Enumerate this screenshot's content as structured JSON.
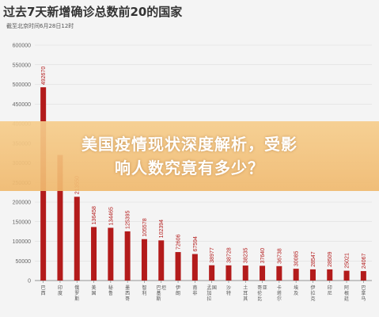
{
  "chart_data": {
    "type": "bar",
    "title": "过去7天新增确诊总数前20的国家",
    "subtitle": "截至北京时间6月28日12时",
    "categories": [
      "巴西",
      "印度",
      "俄罗斯",
      "美国",
      "秘鲁",
      "墨西哥",
      "智利",
      "巴基斯坦",
      "伊朗",
      "南非",
      "孟加拉国",
      "沙特",
      "土耳其",
      "哥伦比亚",
      "卡塔尔",
      "埃及",
      "伊拉克",
      "印尼",
      "阿根廷",
      "巴拿马"
    ],
    "value_labels": [
      "492670",
      "",
      "213550",
      "136458",
      "134465",
      "125395",
      "105578",
      "102394",
      "72606",
      "67594",
      "38977",
      "38728",
      "38235",
      "37640",
      "36738",
      "30085",
      "28547",
      "28509",
      "25021",
      "24067"
    ],
    "values": [
      492670,
      320000,
      213550,
      136458,
      134465,
      125395,
      105578,
      102394,
      72606,
      67594,
      38977,
      38728,
      38235,
      37640,
      36738,
      30085,
      28547,
      28509,
      25021,
      24067
    ],
    "yticks": [
      "600000",
      "550000",
      "500000",
      "450000",
      "400000",
      "350000",
      "300000",
      "250000",
      "200000",
      "150000",
      "100000",
      "50000",
      "0"
    ],
    "ylim": [
      0,
      600000
    ],
    "colors": {
      "bar": "#b31b1b",
      "label": "#b31b1b",
      "grid": "#d9d9d9",
      "axis": "#777777"
    }
  },
  "overlay": {
    "line1": "美国疫情现状深度解析，受影",
    "line2": "响人数究竟有多少？"
  }
}
